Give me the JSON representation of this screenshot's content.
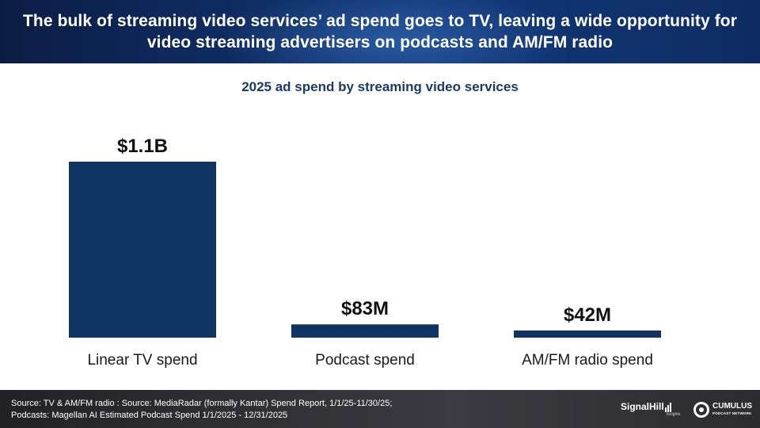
{
  "header": {
    "title": "The bulk of streaming video services’ ad spend goes to TV, leaving a wide opportunity for video streaming advertisers on podcasts and AM/FM radio"
  },
  "chart_data": {
    "type": "bar",
    "title": "2025 ad spend by streaming video services",
    "categories": [
      "Linear TV spend",
      "Podcast spend",
      "AM/FM radio spend"
    ],
    "values": [
      1100,
      83,
      42
    ],
    "value_unit": "$M",
    "data_labels": [
      "$1.1B",
      "$83M",
      "$42M"
    ],
    "bar_color": "#0f3462",
    "grid": false,
    "legend": "none"
  },
  "footer": {
    "source": "Source: TV & AM/FM radio : Source: MediaRadar (formally Kantar) Spend Report, 1/1/25-11/30/25;\nPodcasts: Magellan AI Estimated Podcast Spend 1/1/2025 - 12/31/2025",
    "logo_signal": "SignalHill",
    "logo_signal_sub": "Insights",
    "logo_cumulus": "CUMULUS",
    "logo_cumulus_tag": "PODCAST NETWORK"
  }
}
